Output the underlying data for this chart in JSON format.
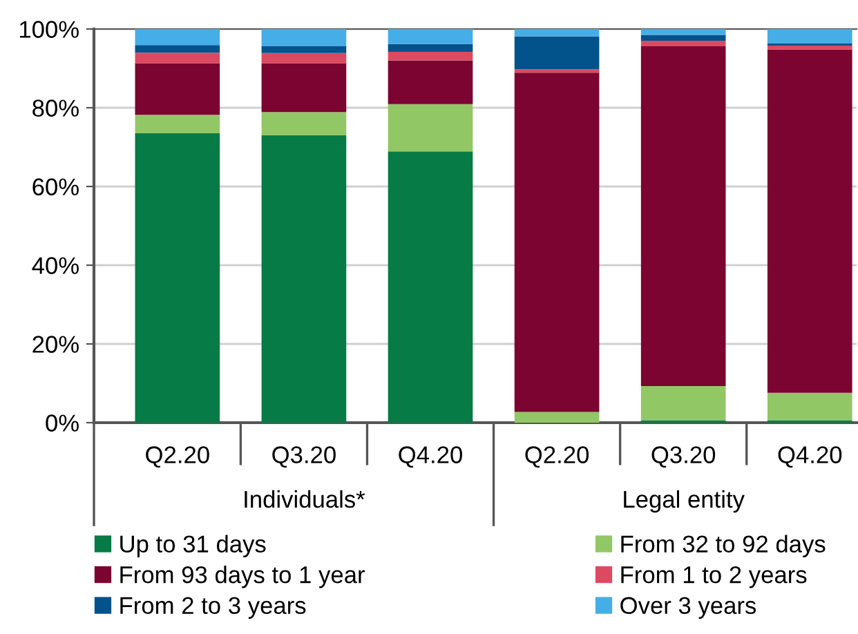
{
  "chart_data": {
    "type": "bar",
    "stacked": true,
    "categories": [
      "Q2.20",
      "Q3.20",
      "Q4.20",
      "Q2.20",
      "Q3.20",
      "Q4.20"
    ],
    "series": [
      {
        "name": "Up to 31 days",
        "color": "#077b45",
        "values": [
          73.5,
          73.0,
          68.9,
          0,
          0.6,
          0.6
        ]
      },
      {
        "name": "From 32 to 92 days",
        "color": "#92c765",
        "values": [
          4.7,
          5.9,
          12.0,
          2.7,
          8.7,
          7.0
        ]
      },
      {
        "name": "From 93 days to 1 year",
        "color": "#7b0431",
        "values": [
          13.1,
          12.4,
          11.1,
          86.2,
          86.3,
          87.2
        ]
      },
      {
        "name": "From 1 to 2 years",
        "color": "#dc4a62",
        "values": [
          2.7,
          2.6,
          2.2,
          0.9,
          1.4,
          1.0
        ]
      },
      {
        "name": "From 2 to 3 years",
        "color": "#02528c",
        "values": [
          1.9,
          1.7,
          2.0,
          8.3,
          1.5,
          0.6
        ]
      },
      {
        "name": "Over 3 years",
        "color": "#45aee6",
        "values": [
          4.1,
          4.6,
          3.8,
          1.9,
          1.5,
          3.6
        ]
      }
    ],
    "ylim": [
      0,
      100
    ],
    "yticks": [
      {
        "value": 0,
        "label": "0%"
      },
      {
        "value": 20,
        "label": "20%"
      },
      {
        "value": 40,
        "label": "40%"
      },
      {
        "value": 60,
        "label": "60%"
      },
      {
        "value": 80,
        "label": "80%"
      },
      {
        "value": 100,
        "label": "100%"
      }
    ],
    "grid": "y",
    "legend": "bottom",
    "annotations": [
      "Individuals*",
      "Legal entity"
    ]
  }
}
